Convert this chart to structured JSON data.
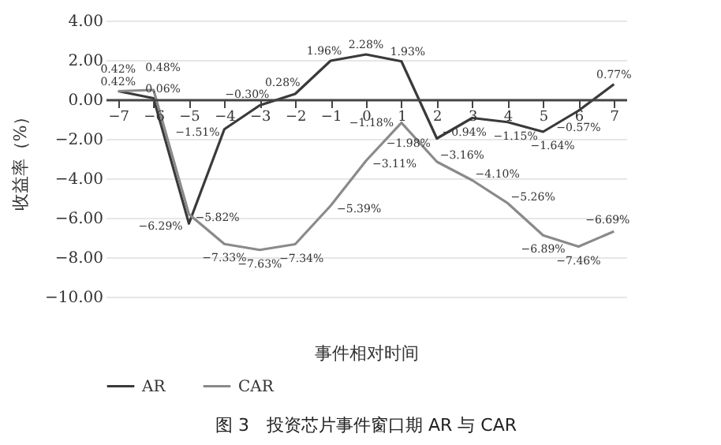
{
  "chart_data": {
    "type": "line",
    "title": "图 3　投资芯片事件窗口期 AR 与 CAR",
    "xlabel": "事件相对时间",
    "ylabel": "收益率（%）",
    "categories": [
      "−7",
      "−6",
      "−5",
      "−4",
      "−3",
      "−2",
      "−1",
      "0",
      "1",
      "2",
      "3",
      "4",
      "5",
      "6",
      "7"
    ],
    "series": [
      {
        "name": "AR",
        "color": "#3a3a3a",
        "values": [
          0.42,
          0.06,
          -6.29,
          -1.51,
          -0.3,
          0.28,
          1.96,
          2.28,
          1.93,
          -1.98,
          -0.94,
          -1.15,
          -1.64,
          -0.57,
          0.77
        ],
        "value_labels": [
          "0.42%",
          "0.06%",
          "−6.29%",
          "−1.51%",
          "−0.30%",
          "0.28%",
          "1.96%",
          "2.28%",
          "1.93%",
          "−1.98%",
          "−0.94%",
          "−1.15%",
          "−1.64%",
          "−0.57%",
          "0.77%"
        ]
      },
      {
        "name": "CAR",
        "color": "#8a8a8a",
        "values": [
          0.42,
          0.48,
          -5.82,
          -7.33,
          -7.63,
          -7.34,
          -5.39,
          -3.11,
          -1.18,
          -3.16,
          -4.1,
          -5.26,
          -6.89,
          -7.46,
          -6.69
        ],
        "value_labels": [
          "0.42%",
          "0.48%",
          "−5.82%",
          "−7.33%",
          "−7.63%",
          "−7.34%",
          "−5.39%",
          "−3.11%",
          "−1.18%",
          "−3.16%",
          "−4.10%",
          "−5.26%",
          "−6.89%",
          "−7.46%",
          "−6.69%"
        ]
      }
    ],
    "ylim": [
      -10,
      4
    ],
    "yticks": [
      {
        "value": -10,
        "label": "−10.00"
      },
      {
        "value": -8,
        "label": "−8.00"
      },
      {
        "value": -6,
        "label": "−6.00"
      },
      {
        "value": -4,
        "label": "−4.00"
      },
      {
        "value": -2,
        "label": "−2.00"
      },
      {
        "value": 0,
        "label": "0.00"
      },
      {
        "value": 2,
        "label": "2.00"
      },
      {
        "value": 4,
        "label": "4.00"
      }
    ],
    "grid": "y",
    "legend": "bottom",
    "marker": "none",
    "line_style": "solid"
  }
}
